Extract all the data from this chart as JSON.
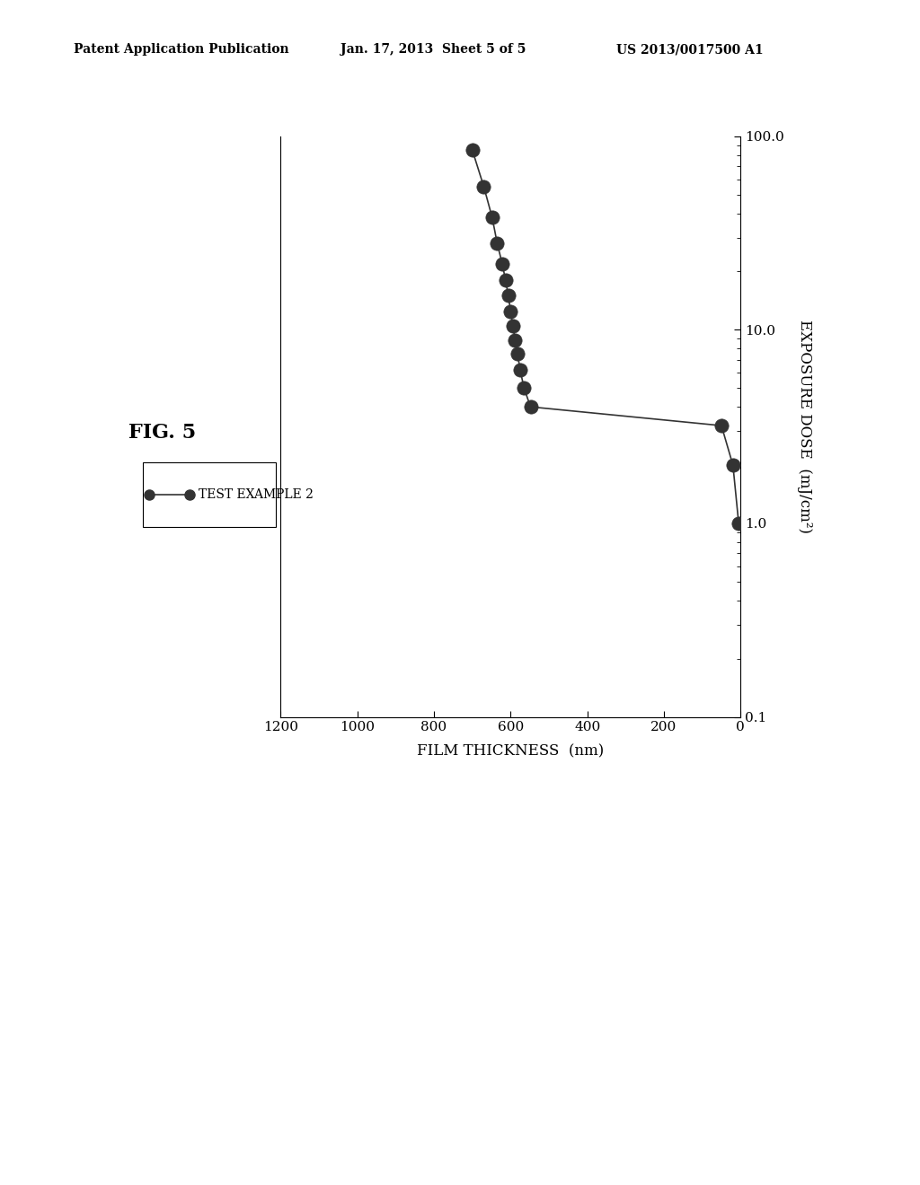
{
  "title": "FIG. 5",
  "header_left": "Patent Application Publication",
  "header_center": "Jan. 17, 2013  Sheet 5 of 5",
  "header_right": "US 2013/0017500 A1",
  "xlabel": "FILM THICKNESS  (nm)",
  "ylabel": "EXPOSURE DOSE  (mJ/cm²)",
  "legend_label": "TEST EXAMPLE 2",
  "x_ticks": [
    0,
    200,
    400,
    600,
    800,
    1000,
    1200
  ],
  "x_lim": [
    0,
    1200
  ],
  "y_lim": [
    0.1,
    100.0
  ],
  "y_ticks": [
    0.1,
    1.0,
    10.0,
    100.0
  ],
  "y_tick_labels": [
    "0.1",
    "1.0",
    "10.0",
    "100.0"
  ],
  "film_thickness": [
    700,
    670,
    648,
    635,
    622,
    613,
    606,
    600,
    594,
    588,
    582,
    575,
    565,
    548,
    50,
    20,
    5
  ],
  "exposure_dose": [
    85,
    55,
    38,
    28,
    22,
    18,
    15,
    12.5,
    10.5,
    8.8,
    7.5,
    6.2,
    5.0,
    4.0,
    3.2,
    2.0,
    1.0
  ],
  "marker_color": "#333333",
  "line_color": "#333333",
  "background_color": "#ffffff",
  "marker_size": 11,
  "line_width": 1.2
}
